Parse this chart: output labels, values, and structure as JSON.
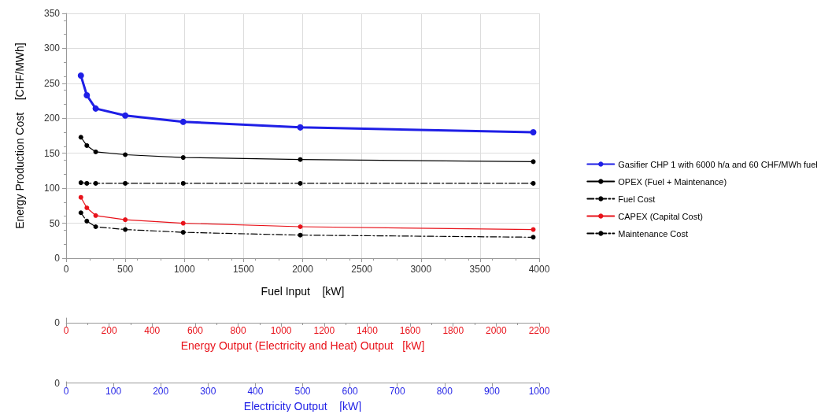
{
  "chart_data": {
    "type": "line",
    "xlabel": "Fuel Input    [kW]",
    "ylabel": "Energy Production Cost    [CHF/MWh]",
    "x": [
      125,
      175,
      250,
      500,
      990,
      1980,
      3950
    ],
    "xlim": [
      0,
      4000
    ],
    "xticks": [
      0,
      500,
      1000,
      1500,
      2000,
      2500,
      3000,
      3500,
      4000
    ],
    "ylim": [
      0,
      350
    ],
    "yticks": [
      0,
      50,
      100,
      150,
      200,
      250,
      300,
      350
    ],
    "x2lim": [
      0,
      2200
    ],
    "x2ticks": [
      0,
      200,
      400,
      600,
      800,
      1000,
      1200,
      1400,
      1600,
      1800,
      2000,
      2200
    ],
    "x2label": "Energy Output (Electricity and Heat) Output   [kW]",
    "annotations": [
      "0",
      "0",
      "0",
      "100",
      "200",
      "300",
      "400",
      "500",
      "600",
      "700",
      "800",
      "900",
      "1000",
      "Electricity Output    [kW]"
    ],
    "grid": true,
    "legend": "right",
    "marker": "circle",
    "series": [
      {
        "name": "Gasifier CHP 1 with 6000 h/a and 60 CHF/MWh fuel",
        "color": "#1f1fe6",
        "line_style": "solid",
        "values": [
          261,
          233,
          214,
          204,
          195,
          187,
          180
        ]
      },
      {
        "name": "OPEX (Fuel + Maintenance)",
        "color": "#000000",
        "line_style": "solid",
        "values": [
          173,
          161,
          152,
          148,
          144,
          141,
          138
        ]
      },
      {
        "name": "Fuel Cost",
        "color": "#000000",
        "line_style": "dashed",
        "values": [
          108,
          107,
          107,
          107,
          107,
          107,
          107
        ]
      },
      {
        "name": "CAPEX (Capital Cost)",
        "color": "#e8131b",
        "line_style": "solid",
        "values": [
          87,
          72,
          61,
          55,
          50,
          45,
          41
        ]
      },
      {
        "name": "Maintenance Cost",
        "color": "#000000",
        "line_style": "dashed",
        "values": [
          65,
          53,
          45,
          41,
          37,
          33,
          30
        ]
      }
    ]
  }
}
